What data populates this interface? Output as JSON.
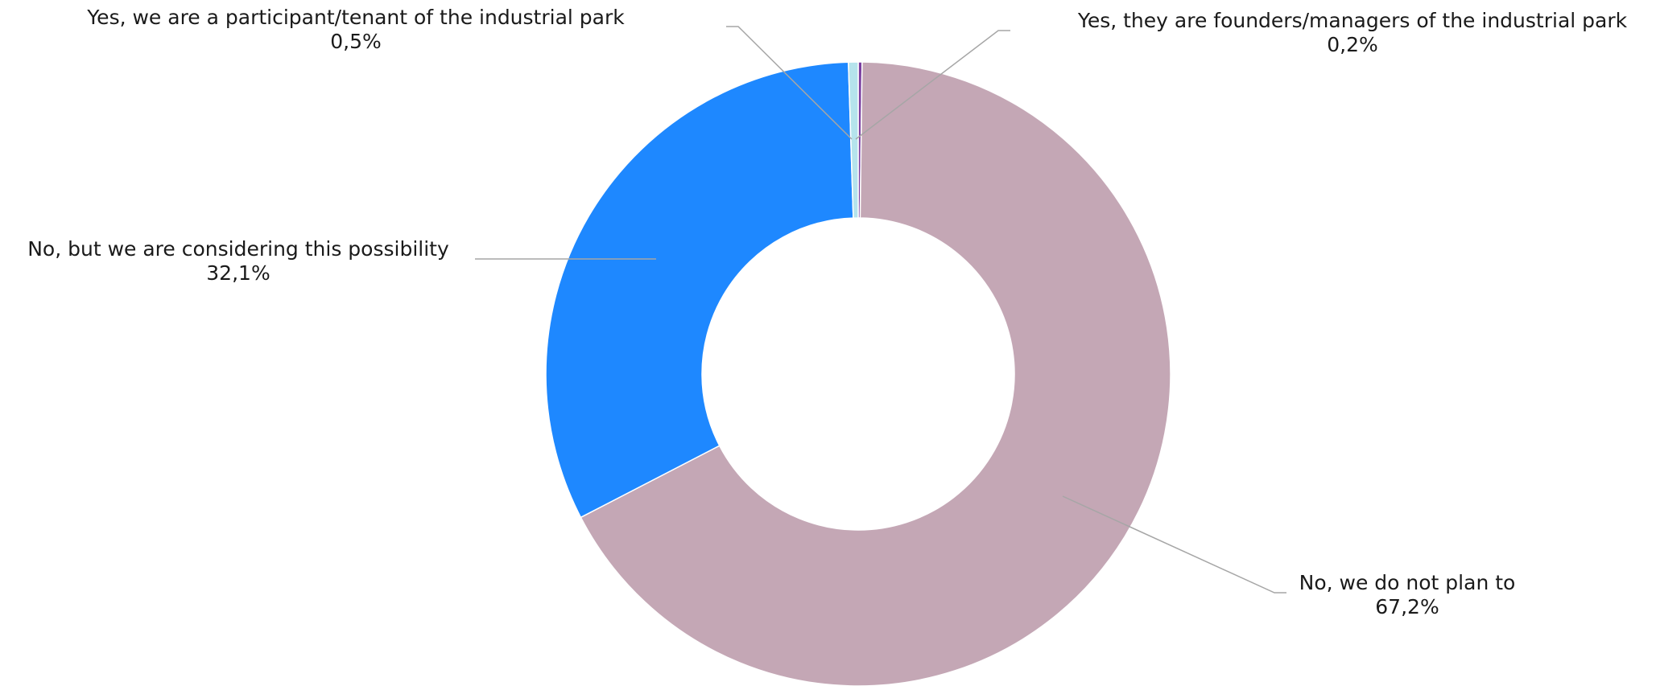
{
  "chart_data": {
    "type": "pie",
    "variant": "donut",
    "title": "",
    "slices": [
      {
        "label": "Yes, they are founders/managers of the industrial park",
        "value": 0.2,
        "value_label": "0,2%",
        "color": "#7b3fa0"
      },
      {
        "label": "No, we do not plan to",
        "value": 67.2,
        "value_label": "67,2%",
        "color": "#c4a7b5"
      },
      {
        "label": "No, but we are considering this possibility",
        "value": 32.1,
        "value_label": "32,1%",
        "color": "#1e88ff"
      },
      {
        "label": "Yes, we are a participant/tenant of the industrial park",
        "value": 0.5,
        "value_label": "0,5%",
        "color": "#b5e3ec"
      }
    ],
    "legend": "none",
    "data_labels": "outside with leader lines"
  }
}
